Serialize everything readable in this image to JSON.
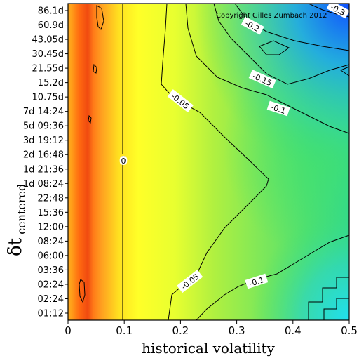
{
  "chart_data": {
    "type": "heatmap",
    "title": "",
    "xlabel": "historical volatility",
    "ylabel_main": "δt",
    "ylabel_subscript": "centered",
    "xlim": [
      0,
      0.5
    ],
    "x_ticks": [
      "0",
      "0.1",
      "0.2",
      "0.3",
      "0.4",
      "0.5"
    ],
    "y_ticks": [
      "01:12",
      "02:24",
      "02:24",
      "03:36",
      "06:00",
      "08:24",
      "12:00",
      "15:36",
      "22:48",
      "1d 08:24",
      "1d 21:36",
      "2d 16:48",
      "3d 19:12",
      "5d 09:36",
      "7d 14:24",
      "10.75d",
      "15.2d",
      "21.55d",
      "30.45d",
      "43.05d",
      "60.9d",
      "86.1d"
    ],
    "contour_labels": [
      "-0.3",
      "-0.2",
      "-0.15",
      "-0.1",
      "-0.05",
      "0",
      "-0.05",
      "-0.1"
    ],
    "colorscale": [
      "#e03010",
      "#ff7010",
      "#ffc020",
      "#ffff20",
      "#a0f040",
      "#40e070",
      "#20d0d0",
      "#1060ff"
    ],
    "grid": false,
    "legend": "none",
    "copyright": "Copyright Gilles Zumbach 2012"
  }
}
